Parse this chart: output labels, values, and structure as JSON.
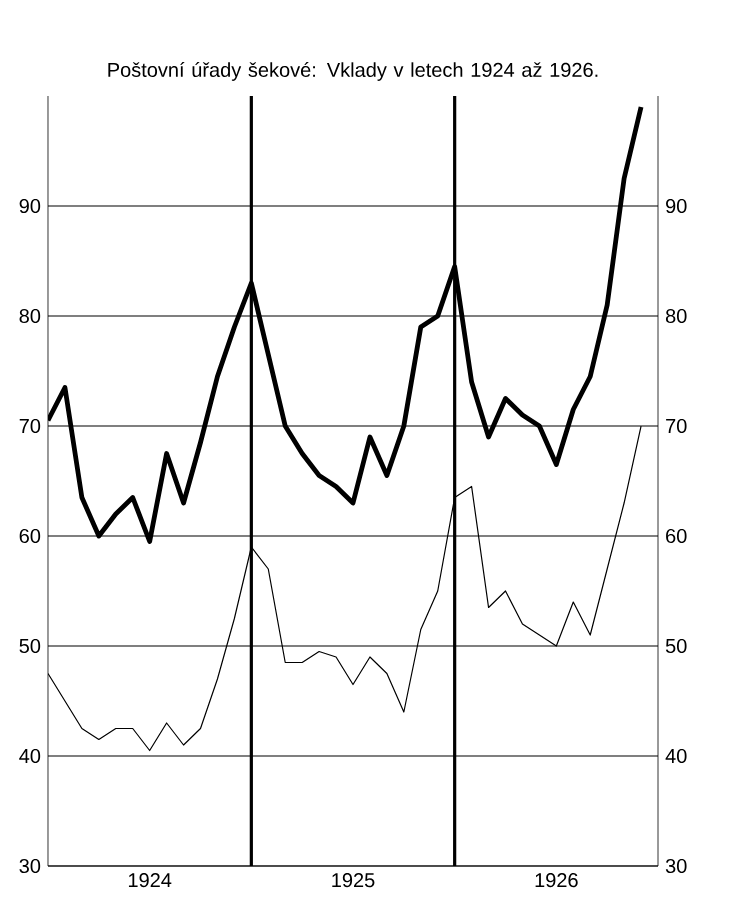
{
  "chart_data": {
    "type": "line",
    "title": "Poštovní úřady šekové: Vklady v letech 1924 až 1926.",
    "x": [
      "1924-01",
      "1924-02",
      "1924-03",
      "1924-04",
      "1924-05",
      "1924-06",
      "1924-07",
      "1924-08",
      "1924-09",
      "1924-10",
      "1924-11",
      "1924-12",
      "1925-01",
      "1925-02",
      "1925-03",
      "1925-04",
      "1925-05",
      "1925-06",
      "1925-07",
      "1925-08",
      "1925-09",
      "1925-10",
      "1925-11",
      "1925-12",
      "1926-01",
      "1926-02",
      "1926-03",
      "1926-04",
      "1926-05",
      "1926-06",
      "1926-07",
      "1926-08",
      "1926-09",
      "1926-10",
      "1926-11",
      "1926-12"
    ],
    "series": [
      {
        "color": "#000000",
        "values": [
          70.5,
          73.5,
          63.5,
          60,
          62,
          63.5,
          59.5,
          67.5,
          63,
          68.5,
          74.5,
          79,
          83,
          76.5,
          70,
          67.5,
          65.5,
          64.5,
          63,
          69,
          65.5,
          70,
          79,
          80,
          84.5,
          74,
          69,
          72.5,
          71,
          70,
          66.5,
          71.5,
          74.5,
          81,
          92.5,
          99
        ]
      },
      {
        "color": "#000000",
        "values": [
          47.5,
          45,
          42.5,
          41.5,
          42.5,
          42.5,
          40.5,
          43,
          41,
          42.5,
          47,
          52.5,
          59,
          57,
          48.5,
          48.5,
          49.5,
          49,
          46.5,
          49,
          47.5,
          44,
          51.5,
          55,
          63.5,
          64.5,
          53.5,
          55,
          52,
          51,
          50,
          54,
          51,
          57,
          63,
          70
        ]
      }
    ],
    "xlim": [
      "1924-01",
      "1927-01"
    ],
    "xticks": [
      {
        "value": "1924-07",
        "label": "1924"
      },
      {
        "value": "1925-07",
        "label": "1925"
      },
      {
        "value": "1926-07",
        "label": "1926"
      }
    ],
    "ylim": [
      30,
      100
    ],
    "yticks": [
      30,
      40,
      50,
      60,
      70,
      80,
      90
    ],
    "y2lim": [
      30,
      100
    ],
    "y2ticks": [
      30,
      40,
      50,
      60,
      70,
      80,
      90
    ],
    "ref_lines": [
      {
        "axis": "x",
        "value": "1925-01"
      },
      {
        "axis": "x",
        "value": "1926-01"
      }
    ],
    "grid": "y"
  }
}
